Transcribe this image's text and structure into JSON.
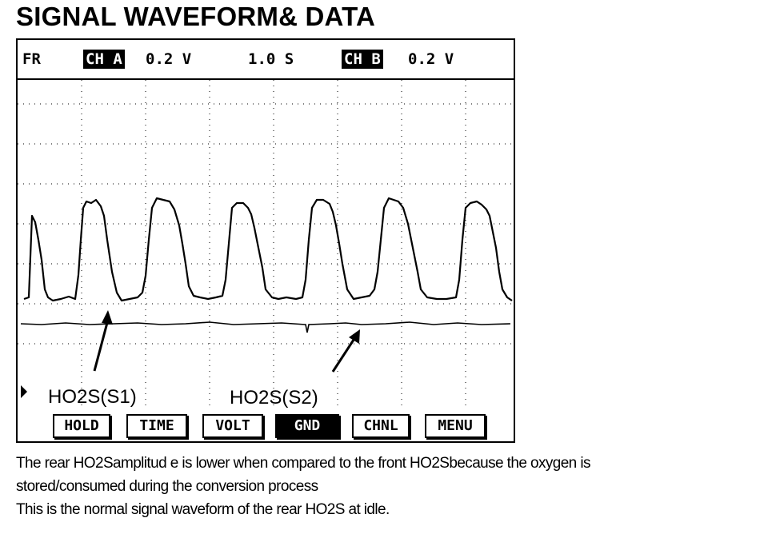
{
  "page_title": "SIGNAL WAVEFORM& DATA",
  "scope": {
    "header": {
      "mode": "FR",
      "channel_a_label": "CH A",
      "channel_a_scale": "0.2 V",
      "time_scale": "1.0 S",
      "channel_b_label": "CH B",
      "channel_b_scale": "0.2 V"
    },
    "annotations": {
      "front_sensor": "HO2S(S1)",
      "rear_sensor": "HO2S(S2)"
    },
    "softkeys": [
      "HOLD",
      "TIME",
      "VOLT",
      "GND",
      "CHNL",
      "MENU"
    ],
    "active_softkey": "GND"
  },
  "caption": {
    "line1": "The rear HO2Samplitud e is lower when compared to the front HO2Sbecause the oxygen is",
    "line2": "stored/consumed during the conversion process",
    "line3": "This is the normal signal waveform of the rear HO2S at idle."
  },
  "colors": {
    "trace": "#000000",
    "background": "#ffffff"
  }
}
